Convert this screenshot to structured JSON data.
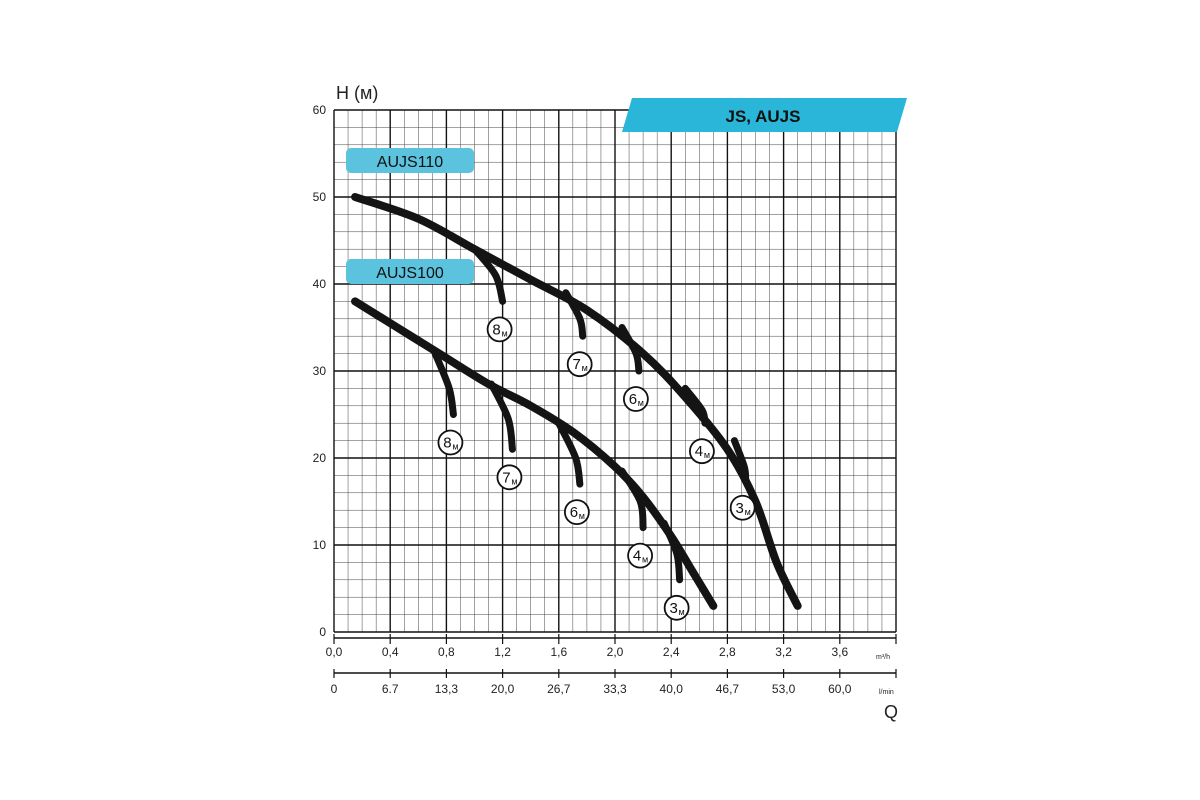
{
  "chart_data": {
    "type": "line",
    "title": "JS, AUJS",
    "ylabel": "H (м)",
    "xlabel": "Q",
    "ylim": [
      0,
      60
    ],
    "y_ticks": [
      "0",
      "10",
      "20",
      "30",
      "40",
      "50",
      "60"
    ],
    "x_m3h_ticks": [
      "0,0",
      "0,4",
      "0,8",
      "1,2",
      "1,6",
      "2,0",
      "2,4",
      "2,8",
      "3,2",
      "3,6"
    ],
    "x_m3h_unit": "m³/h",
    "x_lmin_ticks": [
      "0",
      "6.7",
      "13,3",
      "20,0",
      "26,7",
      "33,3",
      "40,0",
      "46,7",
      "53,0",
      "60,0"
    ],
    "x_lmin_unit": "l/min",
    "xlim_m3h": [
      0,
      4.0
    ],
    "grid": true,
    "colors": {
      "banner": "#29b6d9",
      "series_label_bg": "#5bc3dd",
      "curve": "#141414",
      "grid": "#222222"
    },
    "series": [
      {
        "name": "AUJS110",
        "x": [
          0.15,
          0.6,
          1.0,
          1.4,
          1.8,
          2.2,
          2.5,
          2.8,
          3.0,
          3.15,
          3.3
        ],
        "y": [
          50,
          47.5,
          44,
          40.5,
          37,
          32,
          27,
          21,
          15,
          8,
          3
        ],
        "depth_labels": [
          {
            "big": "8",
            "small": "м",
            "branch_x": [
              1.0,
              1.15,
              1.2
            ],
            "branch_y": [
              44,
              41,
              38
            ]
          },
          {
            "big": "7",
            "small": "м",
            "branch_x": [
              1.65,
              1.75,
              1.77
            ],
            "branch_y": [
              39,
              36,
              34
            ]
          },
          {
            "big": "6",
            "small": "м",
            "branch_x": [
              2.05,
              2.15,
              2.17
            ],
            "branch_y": [
              35,
              32,
              30
            ]
          },
          {
            "big": "4",
            "small": "м",
            "branch_x": [
              2.5,
              2.62,
              2.64
            ],
            "branch_y": [
              28,
              25.5,
              24
            ]
          },
          {
            "big": "3",
            "small": "м",
            "branch_x": [
              2.85,
              2.92,
              2.93
            ],
            "branch_y": [
              22,
              19,
              17.5
            ]
          }
        ]
      },
      {
        "name": "AUJS100",
        "x": [
          0.15,
          0.45,
          0.75,
          1.1,
          1.4,
          1.7,
          2.0,
          2.2,
          2.4,
          2.55,
          2.7
        ],
        "y": [
          38,
          35,
          32,
          28.5,
          26,
          23,
          19,
          15.5,
          11,
          7,
          3
        ],
        "depth_labels": [
          {
            "big": "8",
            "small": "м",
            "branch_x": [
              0.72,
              0.82,
              0.85
            ],
            "branch_y": [
              32,
              28,
              25
            ]
          },
          {
            "big": "7",
            "small": "м",
            "branch_x": [
              1.12,
              1.24,
              1.27
            ],
            "branch_y": [
              28.5,
              24.5,
              21
            ]
          },
          {
            "big": "6",
            "small": "м",
            "branch_x": [
              1.6,
              1.72,
              1.75
            ],
            "branch_y": [
              24,
              20,
              17
            ]
          },
          {
            "big": "4",
            "small": "м",
            "branch_x": [
              2.05,
              2.18,
              2.2
            ],
            "branch_y": [
              18.5,
              15,
              12
            ]
          },
          {
            "big": "3",
            "small": "м",
            "branch_x": [
              2.35,
              2.44,
              2.46
            ],
            "branch_y": [
              12.5,
              9,
              6
            ]
          }
        ]
      }
    ]
  }
}
